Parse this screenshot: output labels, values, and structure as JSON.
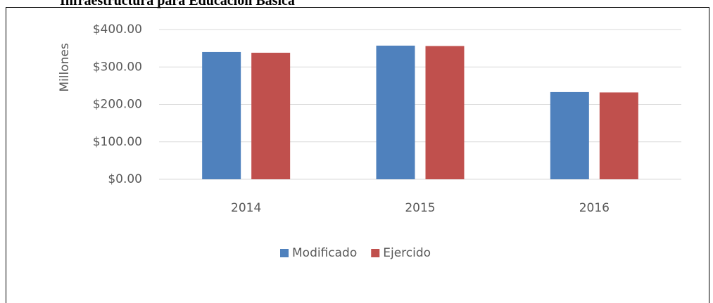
{
  "chart_data": {
    "type": "bar",
    "title": "Infraestructura para Educación Básica",
    "y_label": "Millones",
    "categories": [
      "2014",
      "2015",
      "2016"
    ],
    "series": [
      {
        "name": "Modificado",
        "color": "#4f81bd",
        "values": [
          340,
          357,
          233
        ]
      },
      {
        "name": "Ejercido",
        "color": "#c0504d",
        "values": [
          338,
          356,
          232
        ]
      }
    ],
    "ylim": [
      0,
      400
    ],
    "yticks": [
      {
        "value": 0,
        "label": "$0.00"
      },
      {
        "value": 100,
        "label": "$100.00"
      },
      {
        "value": 200,
        "label": "$200.00"
      },
      {
        "value": 300,
        "label": "$300.00"
      },
      {
        "value": 400,
        "label": "$400.00"
      }
    ],
    "grid": true,
    "legend": "bottom"
  }
}
